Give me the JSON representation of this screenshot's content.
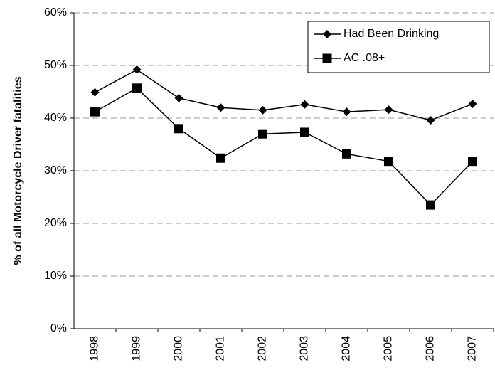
{
  "chart_data": {
    "type": "line",
    "ylabel": "% of all Motorcycle Driver fatalities",
    "categories": [
      "1998",
      "1999",
      "2000",
      "2001",
      "2002",
      "2003",
      "2004",
      "2005",
      "2006",
      "2007"
    ],
    "series": [
      {
        "name": "Had Been Drinking",
        "color": "#000000",
        "marker": "diamond",
        "values": [
          44.9,
          49.2,
          43.8,
          42.0,
          41.5,
          42.6,
          41.2,
          41.6,
          39.6,
          42.7
        ]
      },
      {
        "name": "AC .08+",
        "color": "#000000",
        "marker": "square",
        "values": [
          41.2,
          45.7,
          38.0,
          32.4,
          37.0,
          37.3,
          33.2,
          31.8,
          23.5,
          31.8
        ]
      }
    ],
    "ylim": [
      0,
      60
    ],
    "yticks": [
      {
        "value": 0,
        "label": "0%"
      },
      {
        "value": 10,
        "label": "10%"
      },
      {
        "value": 20,
        "label": "20%"
      },
      {
        "value": 30,
        "label": "30%"
      },
      {
        "value": 40,
        "label": "40%"
      },
      {
        "value": 50,
        "label": "50%"
      },
      {
        "value": 60,
        "label": "60%"
      }
    ],
    "grid": true,
    "legend": "upper right"
  }
}
